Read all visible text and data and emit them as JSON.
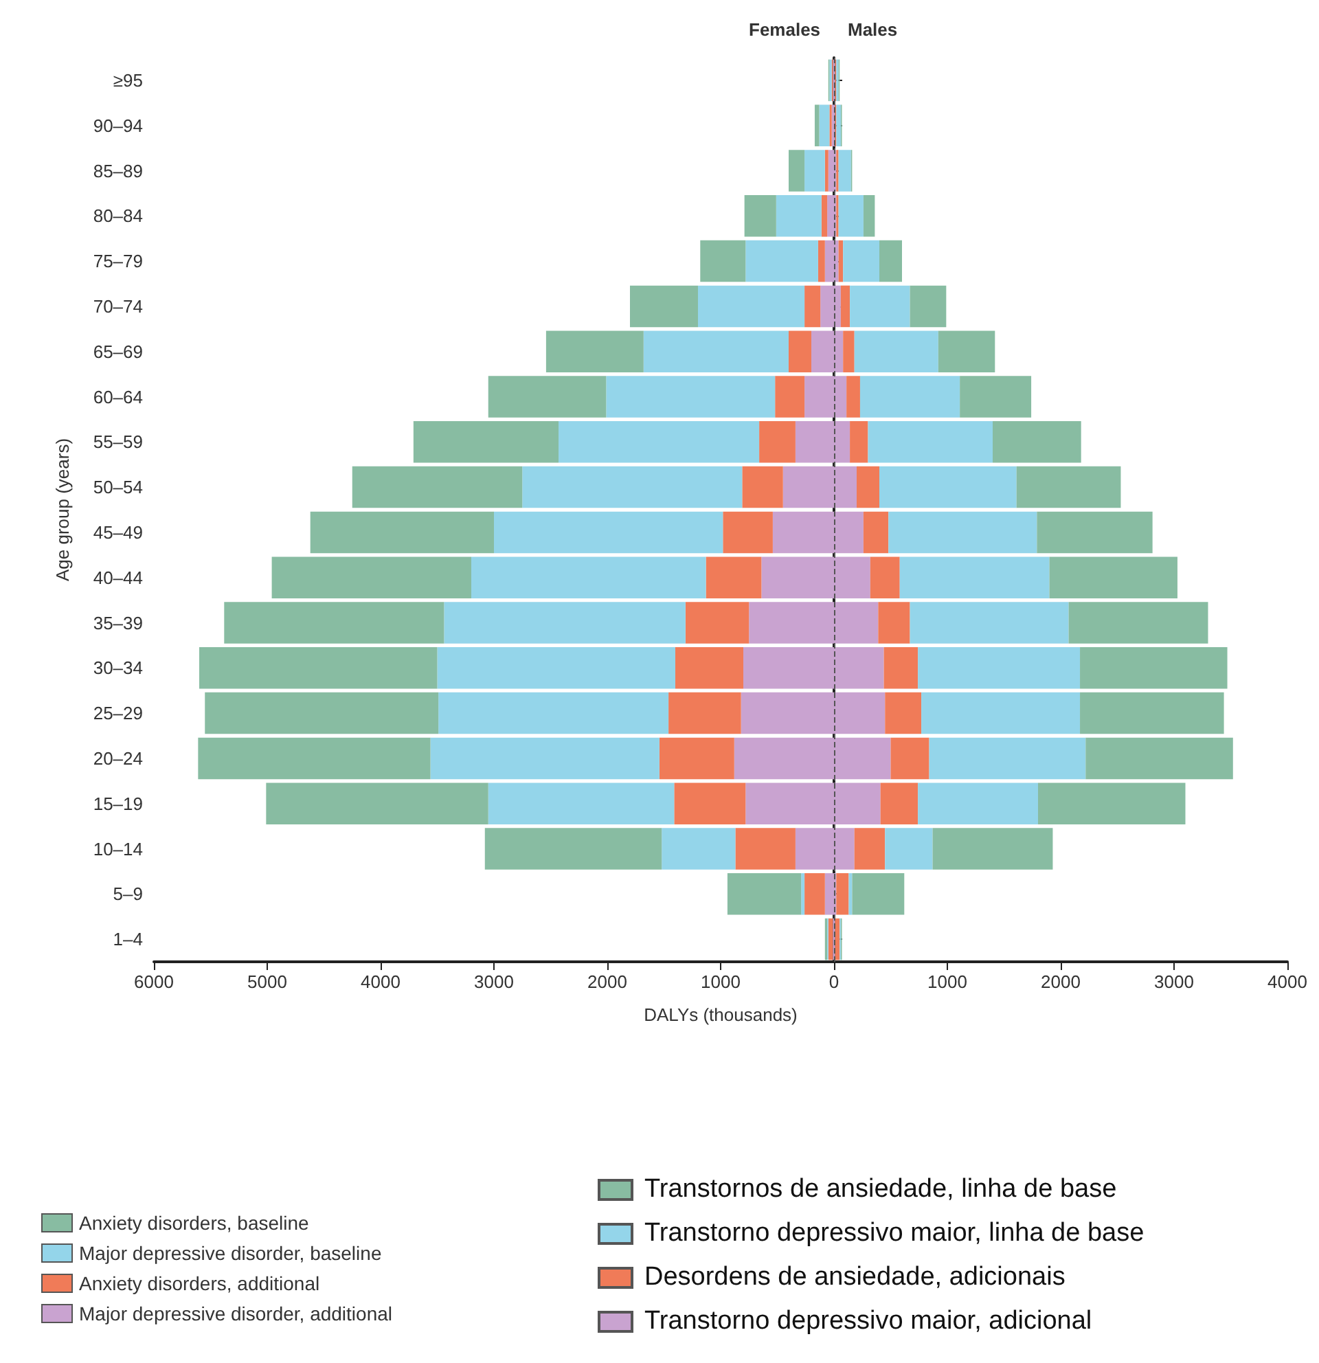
{
  "chart_data": {
    "type": "bar",
    "orientation": "horizontal",
    "stacked": true,
    "xlabel": "DALYs (thousands)",
    "ylabel": "Age group (years)",
    "categories": [
      "≥95",
      "90–94",
      "85–89",
      "80–84",
      "75–79",
      "70–74",
      "65–69",
      "60–64",
      "55–59",
      "50–54",
      "45–49",
      "40–44",
      "35–39",
      "30–34",
      "25–29",
      "20–24",
      "15–19",
      "10–14",
      "5–9",
      "1–4"
    ],
    "series": [
      {
        "name": "Major depressive disorder, additional",
        "color": "#c9a3d0",
        "values": [
          -10,
          -20,
          -50,
          -60,
          -80,
          -120,
          -200,
          -260,
          -340,
          -450,
          -540,
          -640,
          -750,
          -800,
          -820,
          -880,
          -780,
          -340,
          -80,
          -10
        ]
      },
      {
        "name": "Anxiety disorders, additional",
        "color": "#f07b58",
        "values": [
          -10,
          -20,
          -30,
          -50,
          -60,
          -140,
          -200,
          -260,
          -320,
          -360,
          -440,
          -490,
          -560,
          -600,
          -640,
          -660,
          -630,
          -530,
          -180,
          -40
        ]
      },
      {
        "name": "Major depressive disorder, baseline",
        "color": "#94d5ea",
        "values": [
          -20,
          -90,
          -180,
          -400,
          -640,
          -940,
          -1280,
          -1490,
          -1770,
          -1940,
          -2020,
          -2070,
          -2130,
          -2100,
          -2030,
          -2020,
          -1640,
          -650,
          -30,
          -10
        ]
      },
      {
        "name": "Anxiety disorders, baseline",
        "color": "#88bca2",
        "values": [
          -10,
          -40,
          -140,
          -280,
          -400,
          -600,
          -860,
          -1040,
          -1280,
          -1500,
          -1620,
          -1760,
          -1940,
          -2100,
          -2060,
          -2050,
          -1960,
          -1560,
          -650,
          -20
        ]
      },
      {
        "color": "#c9a3d0",
        "values": [
          10,
          10,
          20,
          20,
          40,
          60,
          80,
          110,
          140,
          200,
          260,
          320,
          390,
          440,
          450,
          500,
          410,
          180,
          20,
          10
        ]
      },
      {
        "color": "#f07b58",
        "values": [
          10,
          10,
          20,
          20,
          40,
          80,
          100,
          120,
          160,
          200,
          220,
          260,
          280,
          300,
          320,
          340,
          330,
          270,
          110,
          40
        ]
      },
      {
        "color": "#94d5ea",
        "values": [
          20,
          40,
          110,
          220,
          320,
          530,
          740,
          880,
          1100,
          1210,
          1310,
          1320,
          1400,
          1430,
          1400,
          1380,
          1060,
          420,
          30,
          10
        ]
      },
      {
        "color": "#88bca2",
        "values": [
          10,
          10,
          10,
          100,
          200,
          320,
          500,
          630,
          780,
          920,
          1020,
          1130,
          1230,
          1300,
          1270,
          1300,
          1300,
          1060,
          460,
          10
        ]
      }
    ],
    "xlim": [
      -6000,
      4000
    ],
    "xticks": [
      {
        "value": -6000,
        "label": "6000"
      },
      {
        "value": -5000,
        "label": "5000"
      },
      {
        "value": -4000,
        "label": "4000"
      },
      {
        "value": -3000,
        "label": "3000"
      },
      {
        "value": -2000,
        "label": "2000"
      },
      {
        "value": -1000,
        "label": "1000"
      },
      0,
      1000,
      2000,
      3000,
      4000
    ],
    "ref_lines": [
      {
        "axis": "x",
        "value": 0,
        "line_style": "dashed",
        "color": "#555555"
      }
    ],
    "legend": "bottom left",
    "grid": false,
    "annotations": [
      "Females",
      "Males",
      "Transtornos de ansiedade, linha de base",
      "Transtorno depressivo maior, linha de base",
      "Desordens de ansiedade, adicionais",
      "Transtorno depressivo maior, adicional"
    ]
  }
}
